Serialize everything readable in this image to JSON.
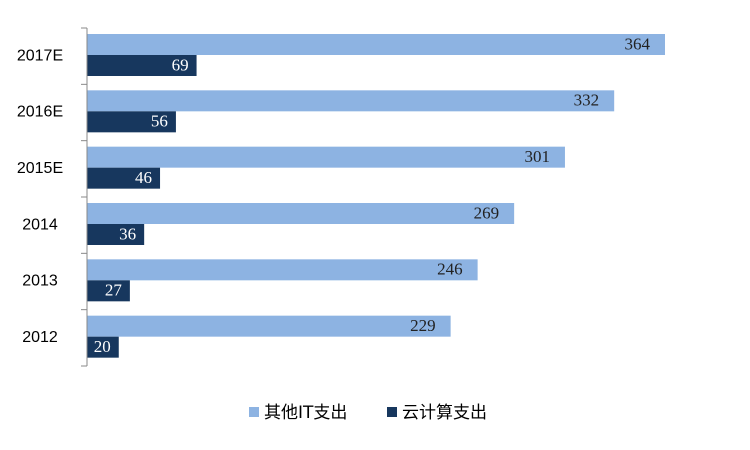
{
  "chart_data": {
    "type": "hbar",
    "categories": [
      "2017E",
      "2016E",
      "2015E",
      "2014",
      "2013",
      "2012"
    ],
    "series": [
      {
        "name": "其他IT支出",
        "color": "#8db3e2",
        "values": [
          364,
          332,
          301,
          269,
          246,
          229
        ]
      },
      {
        "name": "云计算支出",
        "color": "#17375e",
        "values": [
          69,
          56,
          46,
          36,
          27,
          20
        ]
      }
    ],
    "legend": "bottom"
  }
}
